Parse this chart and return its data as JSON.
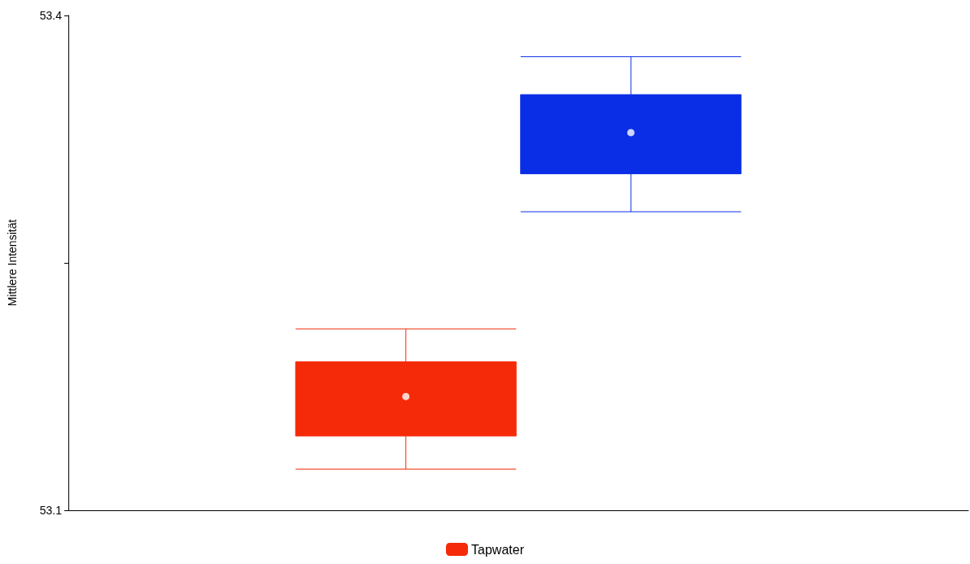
{
  "chart_data": {
    "type": "box",
    "ylabel": "Mittlere Intensität",
    "categories": [
      null,
      null,
      null,
      null
    ],
    "ylim": [
      53.1,
      53.4
    ],
    "yticks": [
      53.1,
      {
        "value": 53.25,
        "label": null
      },
      53.4
    ],
    "grid": false,
    "legend": "bottom",
    "series": [
      {
        "name": "Tapwater",
        "color": "#f52a08",
        "boxes": [
          null,
          {
            "low": 53.125,
            "q1": 53.145,
            "median": 53.169,
            "q3": 53.19,
            "high": 53.21,
            "mean": 53.169
          },
          null,
          null
        ]
      },
      {
        "color": "#0a2ee6",
        "boxes": [
          null,
          null,
          {
            "low": 53.281,
            "q1": 53.304,
            "median": 53.329,
            "q3": 53.352,
            "high": 53.375,
            "mean": 53.329
          },
          null
        ]
      }
    ]
  }
}
